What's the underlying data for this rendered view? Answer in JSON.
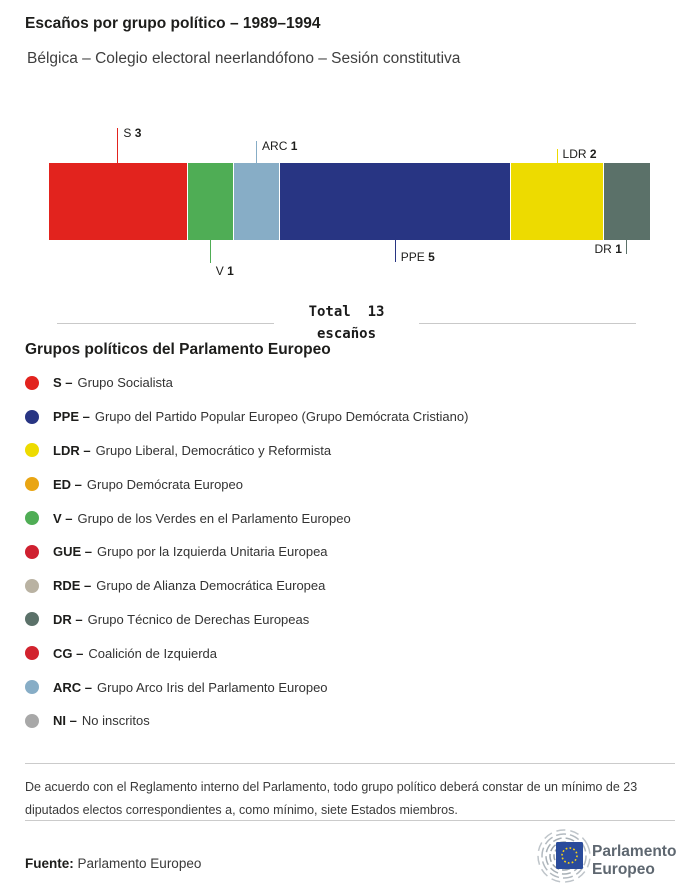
{
  "header": {
    "title": "Escaños por grupo político – 1989–1994",
    "subtitle": "Bélgica – Colegio electoral neerlandófono – Sesión constitutiva"
  },
  "chart_data": {
    "type": "bar",
    "orientation": "horizontal-stacked",
    "title": "Escaños por grupo político – 1989–1994",
    "total_seats": 13,
    "total_label_line1": "Total  13",
    "total_label_line2": "escaños",
    "categories": [
      "S",
      "V",
      "ARC",
      "PPE",
      "LDR",
      "DR"
    ],
    "values": [
      3,
      1,
      1,
      5,
      2,
      1
    ],
    "segments": [
      {
        "code": "S",
        "seats": 3,
        "color": "#e2231e",
        "callout": "above",
        "tick_len": 35,
        "label_placement": "tick-top"
      },
      {
        "code": "V",
        "seats": 1,
        "color": "#4fad55",
        "callout": "below",
        "tick_len": 23,
        "label_placement": "below-tick"
      },
      {
        "code": "ARC",
        "seats": 1,
        "color": "#87adc6",
        "callout": "above",
        "tick_len": 22,
        "label_placement": "tick-top"
      },
      {
        "code": "PPE",
        "seats": 5,
        "color": "#283583",
        "callout": "below",
        "tick_len": 22,
        "label_placement": "beside-tick-bottom"
      },
      {
        "code": "LDR",
        "seats": 2,
        "color": "#eddb00",
        "callout": "above",
        "tick_len": 14,
        "label_placement": "tick-top"
      },
      {
        "code": "DR",
        "seats": 1,
        "color": "#5b7169",
        "callout": "below",
        "tick_len": 14,
        "label_placement": "left-of-tick"
      }
    ]
  },
  "legend": {
    "heading": "Grupos políticos del Parlamento Europeo",
    "separator": "–",
    "items": [
      {
        "code": "S",
        "name": "Grupo Socialista",
        "color": "#e2231e"
      },
      {
        "code": "PPE",
        "name": "Grupo del Partido Popular Europeo (Grupo Demócrata Cristiano)",
        "color": "#283583"
      },
      {
        "code": "LDR",
        "name": "Grupo Liberal, Democrático y Reformista",
        "color": "#eddb00"
      },
      {
        "code": "ED",
        "name": "Grupo Demócrata Europeo",
        "color": "#e9a513"
      },
      {
        "code": "V",
        "name": "Grupo de los Verdes en el Parlamento Europeo",
        "color": "#4fad55"
      },
      {
        "code": "GUE",
        "name": "Grupo por la Izquierda Unitaria Europea",
        "color": "#cf2030"
      },
      {
        "code": "RDE",
        "name": "Grupo de Alianza Democrática Europea",
        "color": "#b9b2a2"
      },
      {
        "code": "DR",
        "name": "Grupo Técnico de Derechas Europeas",
        "color": "#5b7169"
      },
      {
        "code": "CG",
        "name": "Coalición de Izquierda",
        "color": "#d2232e"
      },
      {
        "code": "ARC",
        "name": "Grupo Arco Iris del Parlamento Europeo",
        "color": "#87adc6"
      },
      {
        "code": "NI",
        "name": "No inscritos",
        "color": "#a8a8a8"
      }
    ]
  },
  "footer": {
    "note": "De acuerdo con el Reglamento interno del Parlamento, todo grupo político deberá constar de un mínimo de 23 diputados electos correspondientes a, como mínimo, siete Estados miembros.",
    "source_label": "Fuente:",
    "source": "Parlamento Europeo",
    "logo_text_line1": "Parlamento",
    "logo_text_line2": "Europeo"
  }
}
